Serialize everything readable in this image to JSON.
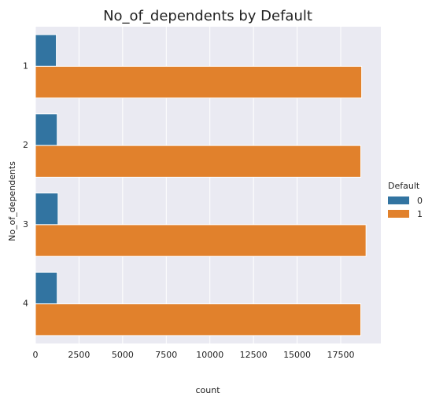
{
  "chart_data": {
    "type": "bar",
    "orientation": "horizontal",
    "title": "No_of_dependents by Default",
    "xlabel": "count",
    "ylabel": "No_of_dependents",
    "categories": [
      "1",
      "2",
      "3",
      "4"
    ],
    "series": [
      {
        "name": "0",
        "color": "#3274a1",
        "values": [
          1200,
          1250,
          1300,
          1250
        ]
      },
      {
        "name": "1",
        "color": "#e1812c",
        "values": [
          18700,
          18650,
          18950,
          18650
        ]
      }
    ],
    "xlim": [
      0,
      19800
    ],
    "xticks": [
      0,
      2500,
      5000,
      7500,
      10000,
      12500,
      15000,
      17500
    ],
    "grid": true,
    "background": "#eaeaf2",
    "legend": {
      "title": "Default",
      "placement": "right"
    }
  }
}
